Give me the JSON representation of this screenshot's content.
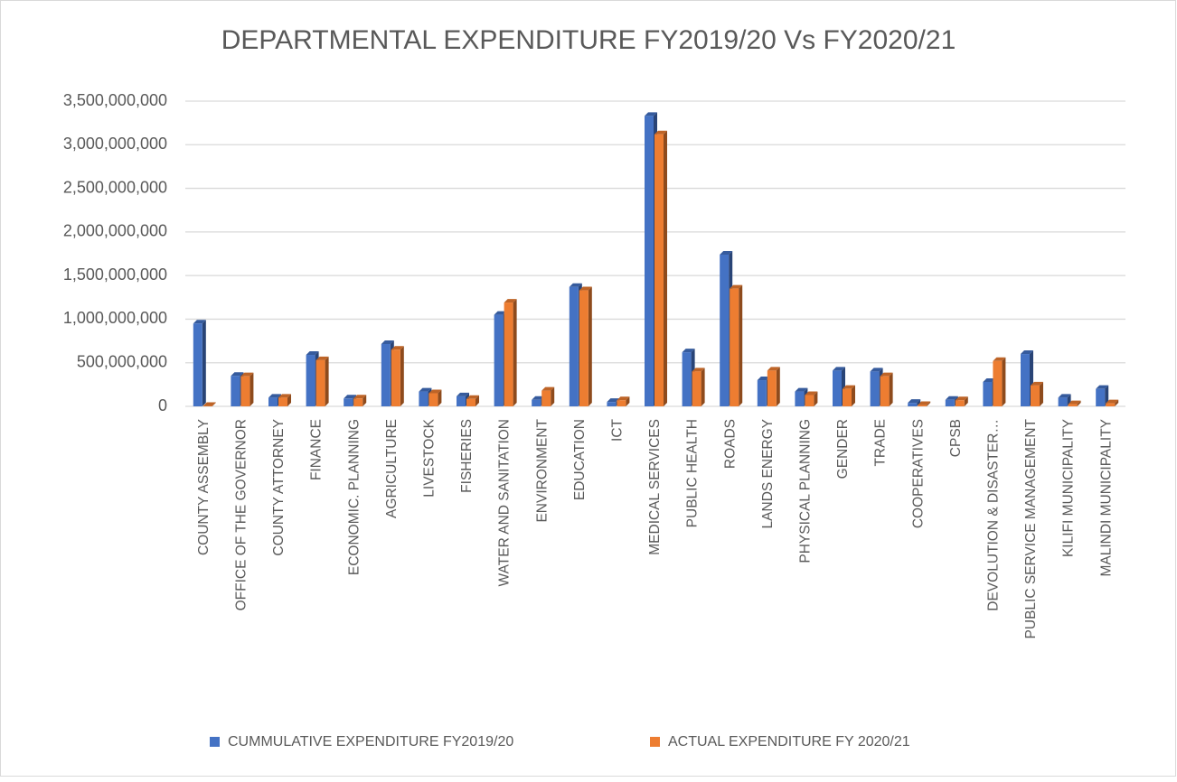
{
  "chart_data": {
    "type": "bar",
    "title": "DEPARTMENTAL EXPENDITURE FY2019/20 Vs FY2020/21",
    "categories": [
      "COUNTY ASSEMBLY",
      "OFFICE OF THE GOVERNOR",
      "COUNTY ATTORNEY",
      "FINANCE",
      "ECONOMIC. PLANNING",
      "AGRICULTURE",
      "LIVESTOCK",
      "FISHERIES",
      "WATER AND SANITATION",
      "ENVIRONMENT",
      "EDUCATION",
      "ICT",
      "MEDICAL SERVICES",
      "PUBLIC HEALTH",
      "ROADS",
      "LANDS ENERGY",
      "PHYSICAL PLANNING",
      "GENDER",
      "TRADE",
      "COOPERATIVES",
      "CPSB",
      "DEVOLUTION & DISASTER…",
      "PUBLIC SERVICE MANAGEMENT",
      "KILIFI MUNICIPALITY",
      "MALINDI MUNICIPALITY"
    ],
    "series": [
      {
        "name": "CUMMULATIVE EXPENDITURE FY2019/20",
        "color": "#4472c4",
        "values": [
          950000000,
          350000000,
          100000000,
          590000000,
          90000000,
          715000000,
          170000000,
          115000000,
          1050000000,
          75000000,
          1370000000,
          50000000,
          3330000000,
          620000000,
          1740000000,
          300000000,
          170000000,
          410000000,
          400000000,
          40000000,
          75000000,
          280000000,
          600000000,
          100000000,
          200000000
        ]
      },
      {
        "name": "ACTUAL EXPENDITURE FY 2020/21",
        "color": "#ed7d31",
        "values": [
          5000000,
          345000000,
          100000000,
          530000000,
          90000000,
          650000000,
          150000000,
          85000000,
          1190000000,
          180000000,
          1330000000,
          70000000,
          3120000000,
          400000000,
          1350000000,
          410000000,
          130000000,
          200000000,
          345000000,
          15000000,
          70000000,
          520000000,
          240000000,
          25000000,
          35000000
        ]
      }
    ],
    "ylim": [
      0,
      3500000000
    ],
    "yticks": [
      0,
      {
        "value": 500000000,
        "label": "500,000,000"
      },
      {
        "value": 1000000000,
        "label": "1,000,000,000"
      },
      {
        "value": 1500000000,
        "label": "1,500,000,000"
      },
      {
        "value": 2000000000,
        "label": "2,000,000,000"
      },
      {
        "value": 2500000000,
        "label": "2,500,000,000"
      },
      {
        "value": 3000000000,
        "label": "3,000,000,000"
      },
      {
        "value": 3500000000,
        "label": "3,500,000,000"
      }
    ],
    "grid": true,
    "legend": "bottom"
  }
}
